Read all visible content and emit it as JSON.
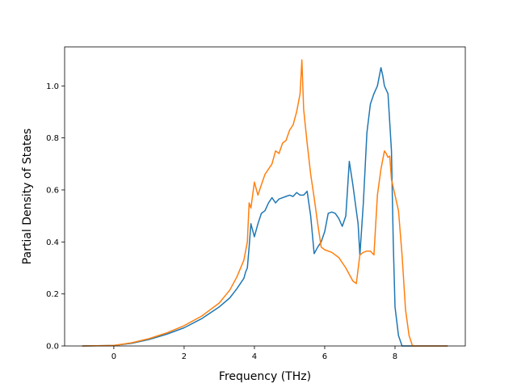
{
  "chart_data": {
    "type": "line",
    "xlabel": "Frequency (THz)",
    "ylabel": "Partial Density of States",
    "xlim": [
      -1.4,
      10.0
    ],
    "ylim": [
      0.0,
      1.15
    ],
    "xticks": [
      0,
      2,
      4,
      6,
      8
    ],
    "yticks": [
      0.0,
      0.2,
      0.4,
      0.6,
      0.8,
      1.0
    ],
    "xtick_labels": [
      "0",
      "2",
      "4",
      "6",
      "8"
    ],
    "ytick_labels": [
      "0.0",
      "0.2",
      "0.4",
      "0.6",
      "0.8",
      "1.0"
    ],
    "grid": false,
    "legend": "none",
    "series": [
      {
        "color": "#1f77b4",
        "x": [
          -0.9,
          0,
          0.5,
          1,
          1.5,
          2,
          2.5,
          3,
          3.3,
          3.5,
          3.7,
          3.75,
          3.8,
          3.85,
          3.9,
          4.0,
          4.1,
          4.2,
          4.3,
          4.4,
          4.5,
          4.6,
          4.7,
          4.8,
          4.9,
          5.0,
          5.1,
          5.2,
          5.3,
          5.4,
          5.5,
          5.6,
          5.7,
          5.8,
          5.9,
          6.0,
          6.1,
          6.2,
          6.3,
          6.4,
          6.5,
          6.6,
          6.7,
          6.8,
          6.9,
          6.95,
          7.0,
          7.1,
          7.2,
          7.3,
          7.4,
          7.5,
          7.6,
          7.65,
          7.7,
          7.8,
          7.9,
          7.95,
          8.0,
          8.1,
          8.2,
          8.3,
          8.4,
          8.5,
          8.6,
          8.7,
          8.8,
          9.5
        ],
        "y": [
          0,
          0.002,
          0.01,
          0.025,
          0.045,
          0.07,
          0.105,
          0.15,
          0.185,
          0.22,
          0.26,
          0.285,
          0.3,
          0.38,
          0.47,
          0.42,
          0.47,
          0.51,
          0.52,
          0.55,
          0.57,
          0.55,
          0.565,
          0.57,
          0.575,
          0.58,
          0.575,
          0.59,
          0.58,
          0.58,
          0.595,
          0.5,
          0.355,
          0.38,
          0.4,
          0.44,
          0.51,
          0.515,
          0.51,
          0.49,
          0.46,
          0.5,
          0.71,
          0.62,
          0.52,
          0.47,
          0.35,
          0.55,
          0.82,
          0.93,
          0.97,
          1.0,
          1.07,
          1.04,
          1.0,
          0.97,
          0.75,
          0.4,
          0.15,
          0.04,
          0,
          0,
          0,
          0,
          0,
          0,
          0,
          0
        ]
      },
      {
        "color": "#ff7f0e",
        "x": [
          -0.9,
          0,
          0.5,
          1,
          1.5,
          2,
          2.5,
          3,
          3.3,
          3.5,
          3.7,
          3.8,
          3.85,
          3.9,
          4.0,
          4.1,
          4.2,
          4.3,
          4.4,
          4.5,
          4.6,
          4.7,
          4.8,
          4.9,
          5.0,
          5.1,
          5.2,
          5.3,
          5.35,
          5.4,
          5.5,
          5.6,
          5.7,
          5.8,
          5.9,
          6.0,
          6.2,
          6.4,
          6.6,
          6.8,
          6.9,
          7.0,
          7.1,
          7.2,
          7.3,
          7.4,
          7.5,
          7.6,
          7.7,
          7.75,
          7.8,
          7.85,
          7.9,
          8.0,
          8.1,
          8.2,
          8.3,
          8.4,
          8.5,
          8.6,
          8.7,
          8.8,
          9.5
        ],
        "y": [
          0,
          0.002,
          0.012,
          0.028,
          0.05,
          0.078,
          0.115,
          0.165,
          0.215,
          0.265,
          0.33,
          0.4,
          0.55,
          0.53,
          0.63,
          0.58,
          0.62,
          0.66,
          0.68,
          0.7,
          0.75,
          0.74,
          0.78,
          0.79,
          0.83,
          0.85,
          0.9,
          0.97,
          1.1,
          0.91,
          0.78,
          0.66,
          0.57,
          0.47,
          0.38,
          0.37,
          0.36,
          0.34,
          0.3,
          0.25,
          0.24,
          0.35,
          0.36,
          0.365,
          0.365,
          0.35,
          0.58,
          0.68,
          0.75,
          0.74,
          0.725,
          0.73,
          0.64,
          0.58,
          0.52,
          0.35,
          0.14,
          0.04,
          0,
          0,
          0,
          0,
          0
        ]
      }
    ]
  }
}
